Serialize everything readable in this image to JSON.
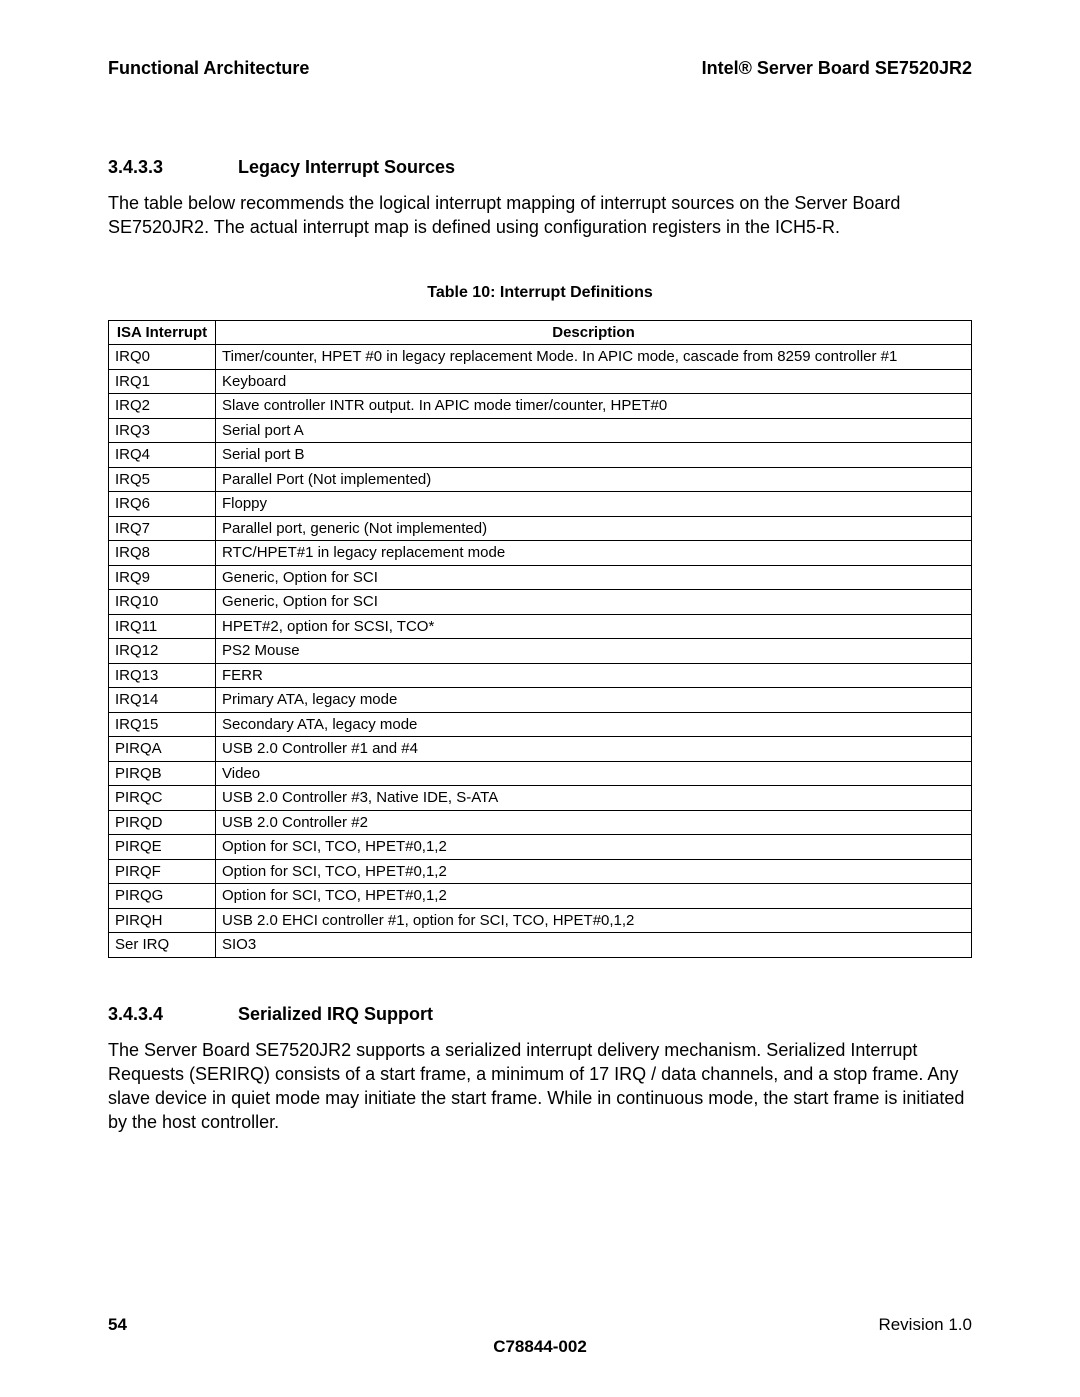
{
  "header": {
    "left": "Functional Architecture",
    "right": "Intel® Server Board SE7520JR2"
  },
  "section1": {
    "num": "3.4.3.3",
    "title": "Legacy Interrupt Sources",
    "body": "The table below recommends the logical interrupt mapping of interrupt sources on the Server Board SE7520JR2. The actual interrupt map is defined using configuration registers in the ICH5-R."
  },
  "table": {
    "caption": "Table 10: Interrupt Definitions",
    "col1": "ISA Interrupt",
    "col2": "Description",
    "rows": [
      {
        "isa": "IRQ0",
        "desc": "Timer/counter, HPET #0 in legacy replacement Mode. In APIC mode, cascade from 8259 controller #1"
      },
      {
        "isa": "IRQ1",
        "desc": "Keyboard"
      },
      {
        "isa": "IRQ2",
        "desc": "Slave controller INTR output. In APIC mode timer/counter, HPET#0"
      },
      {
        "isa": "IRQ3",
        "desc": "Serial port A"
      },
      {
        "isa": "IRQ4",
        "desc": "Serial port B"
      },
      {
        "isa": "IRQ5",
        "desc": "Parallel Port (Not implemented)"
      },
      {
        "isa": "IRQ6",
        "desc": "Floppy"
      },
      {
        "isa": "IRQ7",
        "desc": "Parallel port, generic (Not implemented)"
      },
      {
        "isa": "IRQ8",
        "desc": "RTC/HPET#1 in legacy replacement mode"
      },
      {
        "isa": "IRQ9",
        "desc": "Generic, Option for SCI"
      },
      {
        "isa": "IRQ10",
        "desc": "Generic, Option for SCI"
      },
      {
        "isa": "IRQ11",
        "desc": "HPET#2, option for SCSI, TCO*"
      },
      {
        "isa": "IRQ12",
        "desc": "PS2 Mouse"
      },
      {
        "isa": "IRQ13",
        "desc": "FERR"
      },
      {
        "isa": "IRQ14",
        "desc": "Primary ATA, legacy mode"
      },
      {
        "isa": "IRQ15",
        "desc": "Secondary ATA, legacy mode"
      },
      {
        "isa": "PIRQA",
        "desc": "USB 2.0 Controller #1 and #4"
      },
      {
        "isa": "PIRQB",
        "desc": "Video"
      },
      {
        "isa": "PIRQC",
        "desc": "USB 2.0 Controller #3, Native IDE, S-ATA"
      },
      {
        "isa": "PIRQD",
        "desc": "USB 2.0 Controller #2"
      },
      {
        "isa": "PIRQE",
        "desc": "Option for SCI, TCO, HPET#0,1,2"
      },
      {
        "isa": "PIRQF",
        "desc": "Option for SCI, TCO, HPET#0,1,2"
      },
      {
        "isa": "PIRQG",
        "desc": "Option for SCI, TCO, HPET#0,1,2"
      },
      {
        "isa": "PIRQH",
        "desc": "USB 2.0 EHCI controller #1, option for SCI, TCO, HPET#0,1,2"
      },
      {
        "isa": "Ser IRQ",
        "desc": "SIO3"
      }
    ]
  },
  "section2": {
    "num": "3.4.3.4",
    "title": "Serialized IRQ Support",
    "body": "The Server Board SE7520JR2 supports a serialized interrupt delivery mechanism. Serialized Interrupt Requests (SERIRQ) consists of a start frame, a minimum of 17 IRQ / data channels, and a stop frame. Any slave device in quiet mode may initiate the start frame. While in continuous mode, the start frame is initiated by the host controller."
  },
  "footer": {
    "page": "54",
    "revision": "Revision 1.0",
    "docnum": "C78844-002"
  }
}
